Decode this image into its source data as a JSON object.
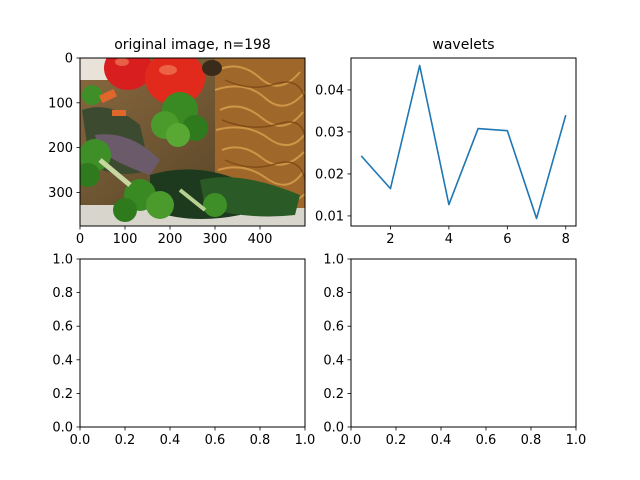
{
  "colors": {
    "line": "#1f77b4",
    "axes": "#000000",
    "background": "#ffffff"
  },
  "chart_data": [
    {
      "type": "image",
      "title": "original image, n=198",
      "content": "food photo: tomatoes, broccoli, greens, noodles",
      "xlim": [
        0,
        500
      ],
      "ylim": [
        375,
        0
      ],
      "xticks": [
        0,
        100,
        200,
        300,
        400
      ],
      "yticks": [
        0,
        100,
        200,
        300
      ]
    },
    {
      "type": "line",
      "title": "wavelets",
      "x": [
        1,
        2,
        3,
        4,
        5,
        6,
        7,
        8
      ],
      "y": [
        0.0243,
        0.0165,
        0.0458,
        0.0127,
        0.0308,
        0.0303,
        0.0094,
        0.034
      ],
      "xlim": [
        0.65,
        8.35
      ],
      "ylim": [
        0.0076,
        0.0476
      ],
      "xticks": [
        2,
        4,
        6,
        8
      ],
      "yticks": [
        0.01,
        0.02,
        0.03,
        0.04
      ],
      "ytick_labels": [
        "0.01",
        "0.02",
        "0.03",
        "0.04"
      ],
      "grid": false
    },
    {
      "type": "line",
      "title": "",
      "empty": true,
      "xlim": [
        0,
        1
      ],
      "ylim": [
        0,
        1
      ],
      "xticks": [
        0,
        0.2,
        0.4,
        0.6,
        0.8,
        1
      ],
      "yticks": [
        0,
        0.2,
        0.4,
        0.6,
        0.8,
        1
      ],
      "xtick_labels": [
        "0.0",
        "0.2",
        "0.4",
        "0.6",
        "0.8",
        "1.0"
      ],
      "ytick_labels": [
        "0.0",
        "0.2",
        "0.4",
        "0.6",
        "0.8",
        "1.0"
      ]
    },
    {
      "type": "line",
      "title": "",
      "empty": true,
      "xlim": [
        0,
        1
      ],
      "ylim": [
        0,
        1
      ],
      "xticks": [
        0,
        0.2,
        0.4,
        0.6,
        0.8,
        1
      ],
      "yticks": [
        0,
        0.2,
        0.4,
        0.6,
        0.8,
        1
      ],
      "xtick_labels": [
        "0.0",
        "0.2",
        "0.4",
        "0.6",
        "0.8",
        "1.0"
      ],
      "ytick_labels": [
        "0.0",
        "0.2",
        "0.4",
        "0.6",
        "0.8",
        "1.0"
      ]
    }
  ]
}
